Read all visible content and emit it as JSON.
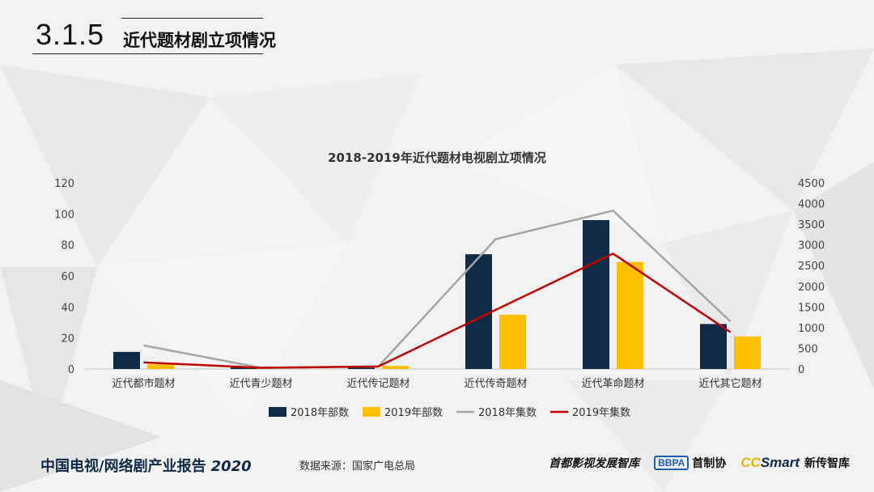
{
  "header": {
    "section_number": "3.1.5",
    "section_title": "近代题材剧立项情况"
  },
  "chart_data": {
    "type": "bar",
    "title": "2018-2019年近代题材电视剧立项情况",
    "categories": [
      "近代都市题材",
      "近代青少题材",
      "近代传记题材",
      "近代传奇题材",
      "近代革命题材",
      "近代其它题材"
    ],
    "series": [
      {
        "name": "2018年部数",
        "kind": "bar",
        "axis": "left",
        "color": "#0e2a47",
        "values": [
          11,
          1,
          1,
          74,
          96,
          29
        ]
      },
      {
        "name": "2019年部数",
        "kind": "bar",
        "axis": "left",
        "color": "#ffc000",
        "values": [
          3,
          0,
          2,
          35,
          69,
          21
        ]
      },
      {
        "name": "2018年集数",
        "kind": "line",
        "axis": "right",
        "color": "#a6a6a6",
        "values": [
          570,
          30,
          60,
          3140,
          3830,
          1150
        ]
      },
      {
        "name": "2019年集数",
        "kind": "line",
        "axis": "right",
        "color": "#c00000",
        "values": [
          160,
          30,
          60,
          1430,
          2790,
          890
        ]
      }
    ],
    "y_left": {
      "min": 0,
      "max": 120,
      "ticks": [
        0,
        20,
        40,
        60,
        80,
        100,
        120
      ]
    },
    "y_right": {
      "min": 0,
      "max": 4500,
      "ticks": [
        0,
        500,
        1000,
        1500,
        2000,
        2500,
        3000,
        3500,
        4000,
        4500
      ]
    },
    "legend_position": "bottom",
    "grid": false
  },
  "footer": {
    "report_title": "中国电视/网络剧产业报告",
    "report_year": "2020",
    "source": "数据来源：国家广电总局",
    "logo1": "首都影视发展智库",
    "logo2_badge": "BBPA",
    "logo2_name": "首制协",
    "logo3_cc": "CC",
    "logo3_smart": "Smart",
    "logo3_name": "新传智库"
  }
}
